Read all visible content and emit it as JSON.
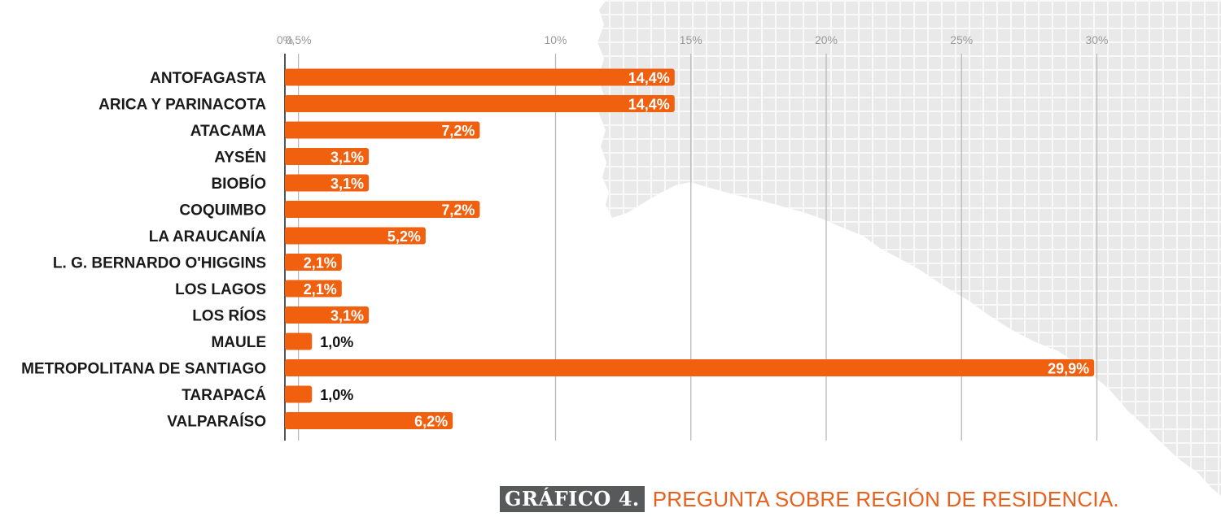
{
  "chart_data": {
    "type": "bar",
    "orientation": "horizontal",
    "categories": [
      "ANTOFAGASTA",
      "ARICA Y PARINACOTA",
      "ATACAMA",
      "AYSÉN",
      "BIOBÍO",
      "COQUIMBO",
      "LA ARAUCANÍA",
      "L. G. BERNARDO O'HIGGINS",
      "LOS LAGOS",
      "LOS RÍOS",
      "MAULE",
      "METROPOLITANA DE SANTIAGO",
      "TARAPACÁ",
      "VALPARAÍSO"
    ],
    "values": [
      14.4,
      14.4,
      7.2,
      3.1,
      3.1,
      7.2,
      5.2,
      2.1,
      2.1,
      3.1,
      1.0,
      29.9,
      1.0,
      6.2
    ],
    "value_labels": [
      "14,4%",
      "14,4%",
      "7,2%",
      "3,1%",
      "3,1%",
      "7,2%",
      "5,2%",
      "2,1%",
      "2,1%",
      "3,1%",
      "1,0%",
      "29,9%",
      "1,0%",
      "6,2%"
    ],
    "xlim": [
      0,
      30
    ],
    "x_ticks": [
      0,
      0.5,
      10,
      15,
      20,
      25,
      30
    ],
    "x_tick_labels": [
      "0%",
      "0,5%",
      "10%",
      "15%",
      "20%",
      "25%",
      "30%"
    ],
    "grid": true,
    "xlabel": "",
    "ylabel": ""
  },
  "title": {
    "tag": "GRÁFICO 4.",
    "text": "PREGUNTA SOBRE REGIÓN DE RESIDENCIA."
  },
  "colors": {
    "bar": "#f0600f",
    "grid": "#b8b8b8",
    "axis": "#555555",
    "paper": "#ececec",
    "paper_grid": "#ffffff"
  }
}
